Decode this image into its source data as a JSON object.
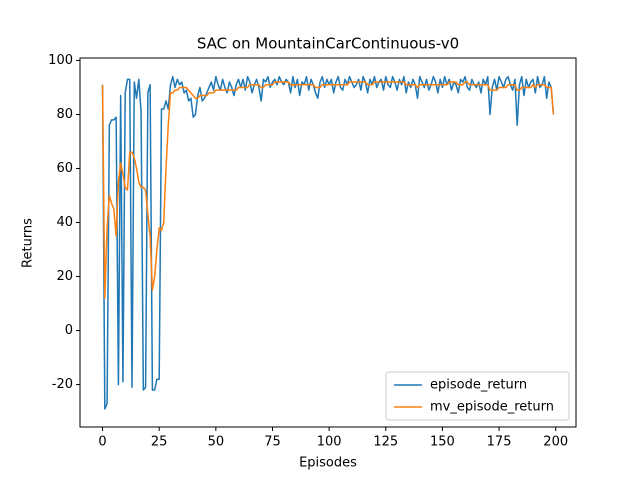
{
  "chart_data": {
    "type": "line",
    "title": "SAC on MountainCarContinuous-v0",
    "x_label": "Episodes",
    "y_label": "Returns",
    "x": [
      0,
      1,
      2,
      3,
      4,
      5,
      6,
      7,
      8,
      9,
      10,
      11,
      12,
      13,
      14,
      15,
      16,
      17,
      18,
      19,
      20,
      21,
      22,
      23,
      24,
      25,
      26,
      27,
      28,
      29,
      30,
      31,
      32,
      33,
      34,
      35,
      36,
      37,
      38,
      39,
      40,
      41,
      42,
      43,
      44,
      45,
      46,
      47,
      48,
      49,
      50,
      51,
      52,
      53,
      54,
      55,
      56,
      57,
      58,
      59,
      60,
      61,
      62,
      63,
      64,
      65,
      66,
      67,
      68,
      69,
      70,
      71,
      72,
      73,
      74,
      75,
      76,
      77,
      78,
      79,
      80,
      81,
      82,
      83,
      84,
      85,
      86,
      87,
      88,
      89,
      90,
      91,
      92,
      93,
      94,
      95,
      96,
      97,
      98,
      99,
      100,
      101,
      102,
      103,
      104,
      105,
      106,
      107,
      108,
      109,
      110,
      111,
      112,
      113,
      114,
      115,
      116,
      117,
      118,
      119,
      120,
      121,
      122,
      123,
      124,
      125,
      126,
      127,
      128,
      129,
      130,
      131,
      132,
      133,
      134,
      135,
      136,
      137,
      138,
      139,
      140,
      141,
      142,
      143,
      144,
      145,
      146,
      147,
      148,
      149,
      150,
      151,
      152,
      153,
      154,
      155,
      156,
      157,
      158,
      159,
      160,
      161,
      162,
      163,
      164,
      165,
      166,
      167,
      168,
      169,
      170,
      171,
      172,
      173,
      174,
      175,
      176,
      177,
      178,
      179,
      180,
      181,
      182,
      183,
      184,
      185,
      186,
      187,
      188,
      189,
      190,
      191,
      192,
      193,
      194,
      195,
      196,
      197,
      198,
      199
    ],
    "series": [
      {
        "name": "episode_return",
        "color": "#1f77b4",
        "values": [
          91,
          -29,
          -27,
          76,
          78,
          78,
          79,
          -20,
          87,
          -19,
          88,
          93,
          93,
          -21,
          92,
          86,
          93,
          81,
          -22,
          -21,
          88,
          91,
          -22,
          -22,
          -18,
          -18,
          82,
          82,
          85,
          82,
          91,
          94,
          90,
          93,
          91,
          92,
          88,
          89,
          85,
          86,
          79,
          80,
          87,
          90,
          85,
          86,
          88,
          90,
          92,
          89,
          94,
          91,
          89,
          93,
          90,
          88,
          92,
          90,
          87,
          91,
          93,
          90,
          93,
          89,
          94,
          92,
          88,
          91,
          93,
          90,
          85,
          93,
          92,
          94,
          90,
          92,
          93,
          91,
          94,
          92,
          91,
          93,
          92,
          88,
          94,
          90,
          93,
          87,
          92,
          91,
          94,
          89,
          93,
          91,
          88,
          86,
          92,
          94,
          90,
          93,
          91,
          93,
          88,
          92,
          94,
          90,
          89,
          93,
          91,
          94,
          92,
          90,
          91,
          93,
          89,
          94,
          92,
          88,
          93,
          91,
          94,
          90,
          92,
          93,
          89,
          94,
          91,
          90,
          94,
          92,
          89,
          93,
          91,
          94,
          88,
          92,
          90,
          93,
          91,
          86,
          94,
          92,
          90,
          93,
          89,
          91,
          94,
          92,
          88,
          93,
          90,
          94,
          91,
          93,
          89,
          92,
          91,
          88,
          93,
          92,
          94,
          90,
          89,
          93,
          91,
          90,
          92,
          88,
          93,
          91,
          94,
          80,
          90,
          93,
          89,
          94,
          92,
          90,
          93,
          94,
          91,
          89,
          93,
          76,
          91,
          94,
          87,
          93,
          90,
          92,
          93,
          88,
          94,
          90,
          91,
          94,
          86,
          92,
          90,
          80
        ]
      },
      {
        "name": "mv_episode_return",
        "color": "#ff7f0e",
        "values": [
          91,
          12,
          38,
          50,
          47,
          45,
          35,
          55,
          62,
          58,
          53,
          52,
          66,
          66,
          64,
          60,
          55,
          53,
          53,
          52,
          43,
          35,
          15,
          20,
          30,
          38,
          37,
          40,
          60,
          76,
          88,
          88,
          89,
          89,
          90,
          90,
          90,
          90,
          89,
          88,
          87,
          86,
          86,
          87,
          87,
          87,
          87,
          88,
          88,
          88,
          89,
          89,
          89,
          89,
          89,
          89,
          89,
          89,
          89,
          89,
          90,
          90,
          90,
          90,
          90,
          91,
          91,
          91,
          91,
          91,
          90,
          90,
          91,
          91,
          91,
          91,
          92,
          92,
          92,
          92,
          92,
          92,
          92,
          91,
          91,
          91,
          91,
          91,
          91,
          91,
          91,
          91,
          91,
          91,
          90,
          90,
          90,
          91,
          91,
          91,
          91,
          91,
          91,
          91,
          91,
          91,
          91,
          91,
          91,
          92,
          92,
          92,
          92,
          92,
          92,
          92,
          92,
          91,
          91,
          91,
          92,
          92,
          92,
          92,
          92,
          92,
          92,
          92,
          92,
          92,
          92,
          92,
          92,
          92,
          91,
          91,
          91,
          91,
          91,
          90,
          91,
          91,
          91,
          91,
          91,
          91,
          91,
          91,
          91,
          91,
          91,
          91,
          91,
          92,
          92,
          92,
          92,
          91,
          91,
          91,
          92,
          92,
          91,
          91,
          91,
          91,
          91,
          91,
          91,
          91,
          91,
          89,
          89,
          89,
          89,
          90,
          90,
          90,
          90,
          91,
          91,
          91,
          91,
          89,
          89,
          90,
          90,
          90,
          90,
          90,
          91,
          90,
          91,
          91,
          91,
          91,
          90,
          90,
          90,
          80
        ]
      }
    ],
    "xlim": [
      -9.95,
      208.95
    ],
    "xticks": [
      0,
      25,
      50,
      75,
      100,
      125,
      150,
      175,
      200
    ],
    "ylim": [
      -35.7,
      100.9
    ],
    "yticks": [
      -20,
      0,
      20,
      40,
      60,
      80,
      100
    ],
    "legend": "lower right"
  }
}
